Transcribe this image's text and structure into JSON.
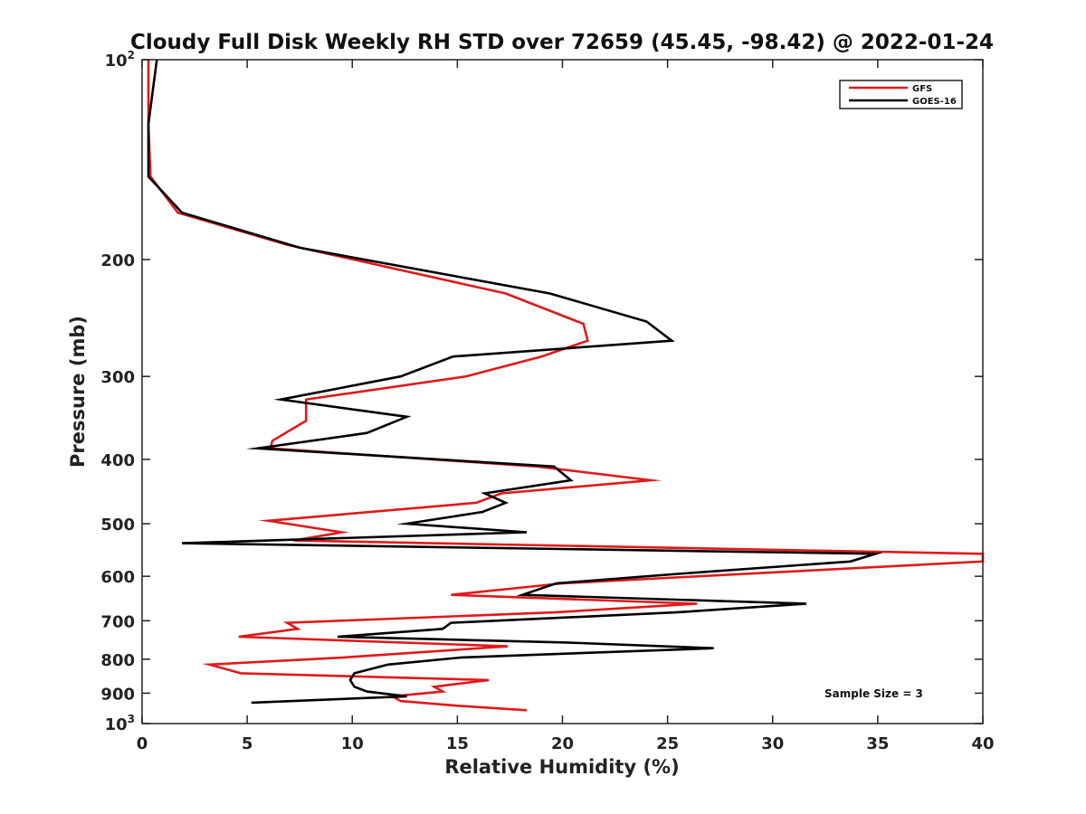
{
  "chart_data": {
    "type": "line",
    "title": "Cloudy Full Disk Weekly RH STD over 72659 (45.45, -98.42) @ 2022-01-24",
    "xlabel": "Relative Humidity (%)",
    "ylabel": "Pressure (mb)",
    "xlim": [
      0,
      40
    ],
    "ylim": [
      100,
      1000
    ],
    "y_scale": "log",
    "y_reversed": true,
    "grid": false,
    "x_ticks": [
      "0",
      "5",
      "10",
      "15",
      "20",
      "25",
      "30",
      "35",
      "40"
    ],
    "x_tick_values": [
      0,
      5,
      10,
      15,
      20,
      25,
      30,
      35,
      40
    ],
    "y_ticks": [
      {
        "value": 100,
        "base": "10",
        "exp": "2"
      },
      {
        "value": 200,
        "label": "200"
      },
      {
        "value": 300,
        "label": "300"
      },
      {
        "value": 400,
        "label": "400"
      },
      {
        "value": 500,
        "label": "500"
      },
      {
        "value": 600,
        "label": "600"
      },
      {
        "value": 700,
        "label": "700"
      },
      {
        "value": 800,
        "label": "800"
      },
      {
        "value": 900,
        "label": "900"
      },
      {
        "value": 1000,
        "base": "10",
        "exp": "3"
      }
    ],
    "legend_position": "top-right",
    "annotation": "Sample Size = 3",
    "series": [
      {
        "name": "GFS",
        "color": "#e0191c",
        "points": [
          [
            0.3,
            100
          ],
          [
            0.3,
            125
          ],
          [
            0.4,
            150
          ],
          [
            1.7,
            170
          ],
          [
            6.9,
            190
          ],
          [
            17.3,
            225
          ],
          [
            21.0,
            250
          ],
          [
            21.2,
            265
          ],
          [
            19.0,
            280
          ],
          [
            15.4,
            300
          ],
          [
            7.8,
            325
          ],
          [
            7.8,
            350
          ],
          [
            6.2,
            375
          ],
          [
            6.1,
            385
          ],
          [
            18.8,
            410
          ],
          [
            24.2,
            430
          ],
          [
            17.1,
            450
          ],
          [
            15.9,
            465
          ],
          [
            6.0,
            495
          ],
          [
            9.5,
            515
          ],
          [
            7.2,
            530
          ],
          [
            40.0,
            555
          ],
          [
            40.0,
            570
          ],
          [
            20.0,
            615
          ],
          [
            14.7,
            640
          ],
          [
            26.4,
            660
          ],
          [
            19.6,
            680
          ],
          [
            6.9,
            705
          ],
          [
            7.4,
            720
          ],
          [
            4.6,
            740
          ],
          [
            17.4,
            765
          ],
          [
            9.6,
            795
          ],
          [
            3.2,
            815
          ],
          [
            4.7,
            840
          ],
          [
            16.5,
            860
          ],
          [
            13.9,
            880
          ],
          [
            14.3,
            895
          ],
          [
            11.9,
            910
          ],
          [
            12.3,
            925
          ],
          [
            15.0,
            940
          ],
          [
            18.3,
            955
          ]
        ]
      },
      {
        "name": "GOES-16",
        "color": "#000000",
        "points": [
          [
            0.7,
            100
          ],
          [
            0.3,
            125
          ],
          [
            0.3,
            150
          ],
          [
            1.9,
            170
          ],
          [
            7.5,
            192
          ],
          [
            19.4,
            225
          ],
          [
            24.0,
            248
          ],
          [
            25.2,
            265
          ],
          [
            14.8,
            280
          ],
          [
            12.3,
            300
          ],
          [
            6.6,
            325
          ],
          [
            12.6,
            345
          ],
          [
            10.7,
            365
          ],
          [
            5.5,
            385
          ],
          [
            19.6,
            410
          ],
          [
            20.4,
            430
          ],
          [
            16.3,
            450
          ],
          [
            17.3,
            465
          ],
          [
            16.2,
            480
          ],
          [
            12.6,
            500
          ],
          [
            18.3,
            515
          ],
          [
            1.9,
            535
          ],
          [
            34.9,
            555
          ],
          [
            33.7,
            570
          ],
          [
            25.5,
            595
          ],
          [
            19.7,
            615
          ],
          [
            18.1,
            640
          ],
          [
            31.6,
            660
          ],
          [
            25.4,
            680
          ],
          [
            14.7,
            705
          ],
          [
            14.3,
            720
          ],
          [
            9.3,
            740
          ],
          [
            20.2,
            755
          ],
          [
            27.2,
            770
          ],
          [
            15.2,
            795
          ],
          [
            11.7,
            815
          ],
          [
            10.1,
            840
          ],
          [
            9.9,
            860
          ],
          [
            10.1,
            880
          ],
          [
            10.7,
            895
          ],
          [
            12.6,
            910
          ],
          [
            5.2,
            930
          ]
        ]
      }
    ]
  }
}
